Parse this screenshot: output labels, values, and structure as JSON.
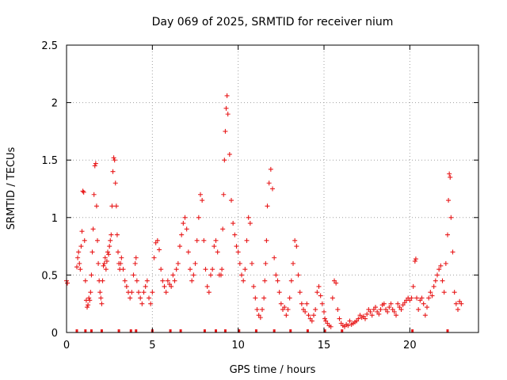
{
  "chart_data": {
    "type": "scatter",
    "title": "Day 069 of 2025, SRMTID for receiver nium",
    "xlabel": "GPS time / hours",
    "ylabel": "SRMTID / TECUs",
    "xlim": [
      0,
      24
    ],
    "ylim": [
      0,
      2.5
    ],
    "x_ticks": [
      0,
      5,
      10,
      15,
      20
    ],
    "x_tick_labels": [
      "0",
      "5",
      "10",
      "15",
      "20"
    ],
    "y_ticks": [
      0,
      0.5,
      1,
      1.5,
      2,
      2.5
    ],
    "y_tick_labels": [
      "0",
      "0.5",
      "1",
      "1.5",
      "2",
      "2.5"
    ],
    "grid": true,
    "marker": "plus",
    "color": "#e8191a",
    "series": [
      {
        "name": "SRMTID",
        "x": [
          0.0,
          0.05,
          0.6,
          0.65,
          0.7,
          0.75,
          0.8,
          0.85,
          0.9,
          0.95,
          1.0,
          1.05,
          1.1,
          1.15,
          1.2,
          1.25,
          1.3,
          1.35,
          1.4,
          1.45,
          1.5,
          1.55,
          1.6,
          1.65,
          1.7,
          1.75,
          1.8,
          1.85,
          1.9,
          1.95,
          2.0,
          2.05,
          2.1,
          2.15,
          2.2,
          2.25,
          2.3,
          2.35,
          2.4,
          2.45,
          2.5,
          2.55,
          2.6,
          2.65,
          2.7,
          2.75,
          2.8,
          2.85,
          2.9,
          2.95,
          3.0,
          3.05,
          3.1,
          3.15,
          3.2,
          3.3,
          3.4,
          3.5,
          3.6,
          3.7,
          3.8,
          3.9,
          4.0,
          4.05,
          4.1,
          4.2,
          4.3,
          4.4,
          4.5,
          4.6,
          4.7,
          4.8,
          4.9,
          5.0,
          5.1,
          5.2,
          5.3,
          5.4,
          5.5,
          5.6,
          5.7,
          5.8,
          5.9,
          6.0,
          6.1,
          6.2,
          6.3,
          6.4,
          6.5,
          6.6,
          6.7,
          6.8,
          6.9,
          7.0,
          7.1,
          7.2,
          7.3,
          7.4,
          7.5,
          7.6,
          7.7,
          7.8,
          7.9,
          8.0,
          8.1,
          8.2,
          8.3,
          8.4,
          8.5,
          8.6,
          8.7,
          8.8,
          8.9,
          9.0,
          9.05,
          9.1,
          9.15,
          9.2,
          9.25,
          9.3,
          9.35,
          9.4,
          9.5,
          9.6,
          9.7,
          9.8,
          9.9,
          10.0,
          10.1,
          10.2,
          10.3,
          10.4,
          10.5,
          10.6,
          10.7,
          10.8,
          10.9,
          11.0,
          11.1,
          11.2,
          11.3,
          11.4,
          11.5,
          11.55,
          11.6,
          11.65,
          11.7,
          11.8,
          11.9,
          12.0,
          12.1,
          12.2,
          12.3,
          12.4,
          12.5,
          12.6,
          12.7,
          12.8,
          12.9,
          13.0,
          13.1,
          13.2,
          13.3,
          13.4,
          13.5,
          13.6,
          13.7,
          13.8,
          13.9,
          14.0,
          14.1,
          14.2,
          14.3,
          14.4,
          14.5,
          14.6,
          14.7,
          14.8,
          14.9,
          15.0,
          15.05,
          15.1,
          15.2,
          15.3,
          15.4,
          15.5,
          15.6,
          15.7,
          15.8,
          15.9,
          16.0,
          16.1,
          16.2,
          16.3,
          16.4,
          16.5,
          16.6,
          16.7,
          16.8,
          16.9,
          17.0,
          17.1,
          17.2,
          17.3,
          17.4,
          17.5,
          17.6,
          17.7,
          17.8,
          17.9,
          18.0,
          18.1,
          18.2,
          18.3,
          18.4,
          18.5,
          18.6,
          18.7,
          18.8,
          18.9,
          19.0,
          19.1,
          19.2,
          19.3,
          19.4,
          19.5,
          19.6,
          19.7,
          19.8,
          19.9,
          20.0,
          20.1,
          20.2,
          20.3,
          20.35,
          20.4,
          20.5,
          20.6,
          20.7,
          20.8,
          20.9,
          21.0,
          21.1,
          21.2,
          21.3,
          21.4,
          21.5,
          21.6,
          21.7,
          21.8,
          21.9,
          22.0,
          22.1,
          22.2,
          22.25,
          22.3,
          22.35,
          22.4,
          22.5,
          22.6,
          22.7,
          22.8,
          22.9,
          23.0
        ],
        "y": [
          0.45,
          0.43,
          0.57,
          0.65,
          0.7,
          0.6,
          0.55,
          0.75,
          0.88,
          1.23,
          1.22,
          0.8,
          0.45,
          0.28,
          0.22,
          0.24,
          0.3,
          0.28,
          0.35,
          0.5,
          0.7,
          0.9,
          1.2,
          1.45,
          1.47,
          1.1,
          0.8,
          0.6,
          0.45,
          0.35,
          0.3,
          0.25,
          0.45,
          0.58,
          0.6,
          0.65,
          0.55,
          0.62,
          0.7,
          0.68,
          0.75,
          0.8,
          0.85,
          1.1,
          1.4,
          1.52,
          1.5,
          1.3,
          1.1,
          0.85,
          0.7,
          0.6,
          0.55,
          0.6,
          0.65,
          0.55,
          0.45,
          0.4,
          0.35,
          0.3,
          0.35,
          0.5,
          0.6,
          0.65,
          0.45,
          0.35,
          0.3,
          0.25,
          0.35,
          0.4,
          0.45,
          0.3,
          0.25,
          0.35,
          0.65,
          0.78,
          0.8,
          0.72,
          0.55,
          0.45,
          0.4,
          0.35,
          0.45,
          0.42,
          0.4,
          0.5,
          0.45,
          0.55,
          0.6,
          0.75,
          0.85,
          0.95,
          1.0,
          0.9,
          0.7,
          0.55,
          0.45,
          0.5,
          0.6,
          0.8,
          1.0,
          1.2,
          1.15,
          0.8,
          0.55,
          0.4,
          0.35,
          0.5,
          0.55,
          0.75,
          0.8,
          0.7,
          0.5,
          0.5,
          0.55,
          0.9,
          1.2,
          1.5,
          1.75,
          1.95,
          2.06,
          1.9,
          1.55,
          1.15,
          0.95,
          0.85,
          0.75,
          0.7,
          0.6,
          0.5,
          0.45,
          0.55,
          0.8,
          1.0,
          0.95,
          0.6,
          0.4,
          0.3,
          0.2,
          0.15,
          0.13,
          0.2,
          0.3,
          0.45,
          0.6,
          0.8,
          1.1,
          1.3,
          1.42,
          1.25,
          0.65,
          0.5,
          0.45,
          0.35,
          0.25,
          0.2,
          0.22,
          0.15,
          0.2,
          0.3,
          0.45,
          0.6,
          0.8,
          0.75,
          0.5,
          0.35,
          0.25,
          0.2,
          0.18,
          0.25,
          0.15,
          0.12,
          0.1,
          0.15,
          0.2,
          0.35,
          0.4,
          0.32,
          0.25,
          0.18,
          0.12,
          0.1,
          0.08,
          0.06,
          0.05,
          0.3,
          0.45,
          0.43,
          0.2,
          0.12,
          0.08,
          0.06,
          0.05,
          0.07,
          0.06,
          0.1,
          0.07,
          0.08,
          0.09,
          0.1,
          0.12,
          0.15,
          0.13,
          0.14,
          0.12,
          0.16,
          0.2,
          0.18,
          0.15,
          0.2,
          0.22,
          0.18,
          0.16,
          0.2,
          0.24,
          0.25,
          0.2,
          0.18,
          0.22,
          0.25,
          0.2,
          0.18,
          0.15,
          0.25,
          0.22,
          0.2,
          0.24,
          0.26,
          0.28,
          0.3,
          0.28,
          0.3,
          0.4,
          0.62,
          0.64,
          0.3,
          0.2,
          0.28,
          0.3,
          0.25,
          0.15,
          0.22,
          0.3,
          0.35,
          0.32,
          0.4,
          0.45,
          0.5,
          0.55,
          0.58,
          0.45,
          0.35,
          0.6,
          0.85,
          1.15,
          1.38,
          1.35,
          1.0,
          0.7,
          0.35,
          0.25,
          0.2,
          0.27,
          0.25
        ]
      }
    ],
    "rug_x": [
      0.6,
      1.1,
      1.45,
      2.05,
      3.05,
      3.75,
      4.05,
      5.0,
      6.05,
      6.65,
      8.05,
      8.7,
      9.25,
      10.05,
      11.05,
      12.1,
      13.05,
      14.05,
      15.05,
      16.05,
      20.15,
      22.2
    ]
  }
}
